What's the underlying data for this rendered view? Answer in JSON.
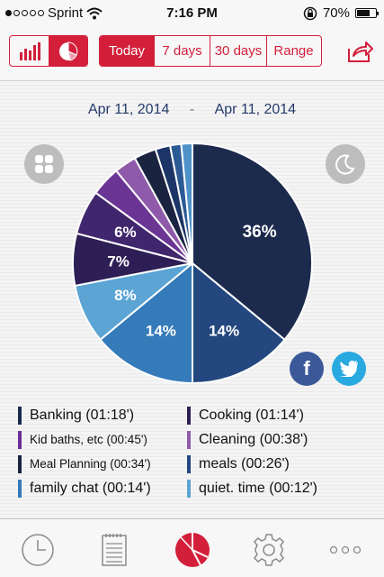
{
  "status": {
    "carrier": "Sprint",
    "time": "7:16 PM",
    "battery": "70%",
    "battery_level": 0.7
  },
  "toolbar": {
    "view_toggle": [
      {
        "icon": "bar-chart-icon",
        "selected": false
      },
      {
        "icon": "pie-chart-icon",
        "selected": true
      }
    ],
    "ranges": [
      {
        "label": "Today",
        "selected": true
      },
      {
        "label": "7 days",
        "selected": false
      },
      {
        "label": "30 days",
        "selected": false
      },
      {
        "label": "Range",
        "selected": false
      }
    ],
    "share_icon": "share-icon"
  },
  "dates": {
    "start": "Apr 11, 2014",
    "separator": "-",
    "end": "Apr 11, 2014"
  },
  "colors": {
    "accent": "#d31f3a",
    "date_text": "#243a6b",
    "facebook": "#3b5998",
    "twitter": "#2aa9e0"
  },
  "chart_data": {
    "type": "pie",
    "slices": [
      {
        "label": "Banking (01:18')",
        "value": 36,
        "data_label": "36%",
        "color": "#1c2a4d"
      },
      {
        "label": "meals (00:26')",
        "value": 14,
        "data_label": "14%",
        "color": "#23477e"
      },
      {
        "label": "family chat (00:14')",
        "value": 14,
        "data_label": "14%",
        "color": "#357ab9"
      },
      {
        "label": "quiet. time (00:12')",
        "value": 8,
        "data_label": "8%",
        "color": "#5ba4d4"
      },
      {
        "label": "Cooking (01:14')",
        "value": 7,
        "data_label": "7%",
        "color": "#2d1f55"
      },
      {
        "label": "Kid baths, etc (00:45')",
        "value": 6,
        "data_label": "6%",
        "color": "#40266d"
      },
      {
        "label": "Cleaning (00:38')",
        "value": 4,
        "data_label": "",
        "color": "#6a3593"
      },
      {
        "label": "Meal Planning (00:34')",
        "value": 3,
        "data_label": "",
        "color": "#8f5aa9"
      },
      {
        "label": "",
        "value": 3,
        "data_label": "",
        "color": "#1a2340"
      },
      {
        "label": "",
        "value": 2,
        "data_label": "",
        "color": "#1d3566"
      },
      {
        "label": "",
        "value": 1.5,
        "data_label": "",
        "color": "#2c5a95"
      },
      {
        "label": "",
        "value": 1.5,
        "data_label": "",
        "color": "#4e92c9"
      }
    ]
  },
  "legend": [
    {
      "label": "Banking (01:18')",
      "color": "#1c2a4d",
      "small": false
    },
    {
      "label": "Cooking (01:14')",
      "color": "#2d1f55",
      "small": false
    },
    {
      "label": "Kid baths, etc (00:45')",
      "color": "#6a2d9a",
      "small": true
    },
    {
      "label": "Cleaning (00:38')",
      "color": "#8f5aa9",
      "small": false
    },
    {
      "label": "Meal Planning (00:34')",
      "color": "#1a2340",
      "small": true
    },
    {
      "label": "meals (00:26')",
      "color": "#23477e",
      "small": false
    },
    {
      "label": "family chat (00:14')",
      "color": "#357ab9",
      "small": false
    },
    {
      "label": "quiet. time (00:12')",
      "color": "#5ba4d4",
      "small": false
    }
  ],
  "tabbar": [
    {
      "icon": "clock-icon",
      "selected": false
    },
    {
      "icon": "notepad-icon",
      "selected": false
    },
    {
      "icon": "pie-chart-icon",
      "selected": true
    },
    {
      "icon": "gear-icon",
      "selected": false
    },
    {
      "icon": "more-icon",
      "selected": false
    }
  ]
}
